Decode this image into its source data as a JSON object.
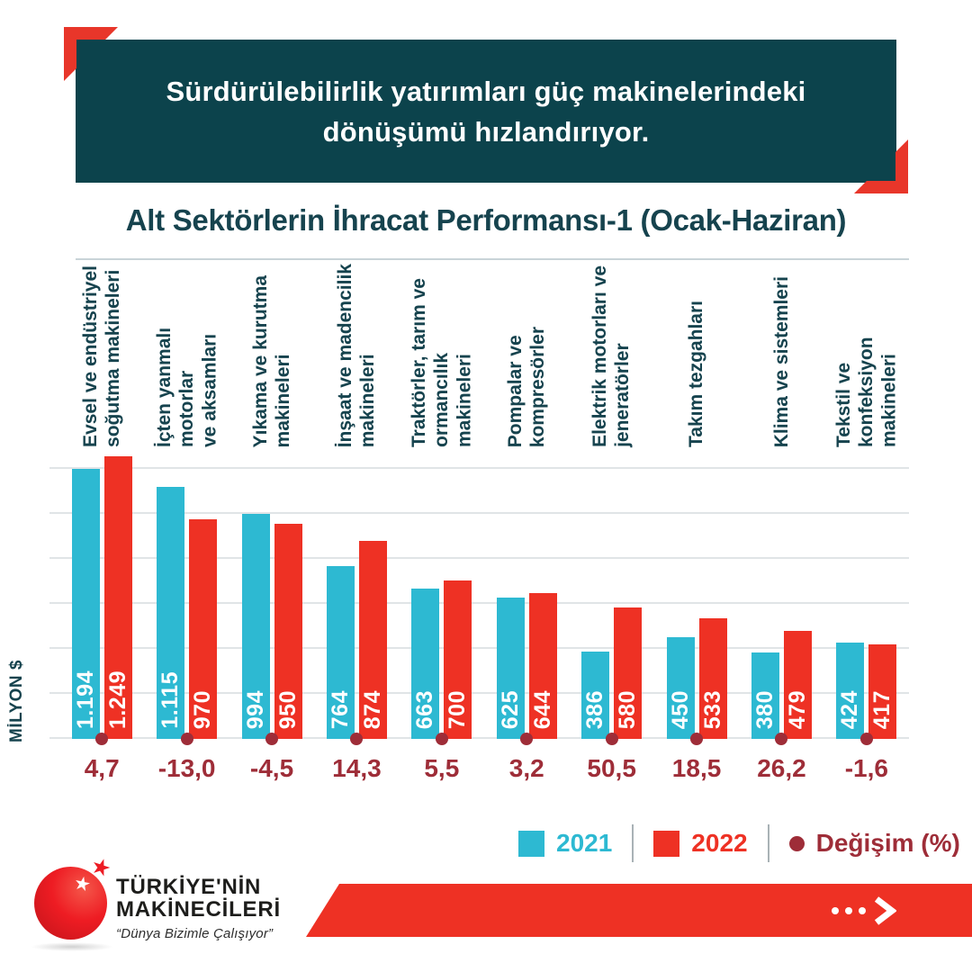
{
  "colors": {
    "banner_teal": "#0c434c",
    "accent_red": "#e8362a",
    "bar_2021_cyan": "#2db9d2",
    "bar_2022_red": "#ee3124",
    "change_dark_red": "#9e2d38",
    "title_teal": "#16434e",
    "gridline_gray": "#e0e4e7"
  },
  "header": {
    "line1": "Sürdürülebilirlik yatırımları güç makinelerindeki",
    "line2": "dönüşümü hızlandırıyor."
  },
  "chart_data": {
    "type": "bar",
    "title": "Alt Sektörlerin İhracat Performansı-1 (Ocak-Haziran)",
    "ylabel": "MİLYON $",
    "ylim": [
      0,
      1400
    ],
    "gridline_step": 200,
    "grid": true,
    "legend_position": "bottom-right",
    "categories": [
      [
        "Evsel ve endüstriyel",
        "soğutma makineleri"
      ],
      [
        "İçten yanmalı motorlar",
        "ve aksamları"
      ],
      [
        "Yıkama ve kurutma",
        "makineleri"
      ],
      [
        "İnşaat ve madencilik",
        "makineleri"
      ],
      [
        "Traktörler, tarım ve",
        "ormancılık makineleri"
      ],
      [
        "Pompalar ve",
        "kompresörler"
      ],
      [
        "Elektrik motorları ve",
        "jeneratörler"
      ],
      [
        "Takım tezgahları"
      ],
      [
        "Klima ve sistemleri"
      ],
      [
        "Tekstil ve konfeksiyon",
        "makineleri"
      ]
    ],
    "series": [
      {
        "name": "2021",
        "color": "#2db9d2",
        "values": [
          1194,
          1115,
          994,
          764,
          663,
          625,
          386,
          450,
          380,
          424
        ],
        "labels": [
          "1.194",
          "1.115",
          "994",
          "764",
          "663",
          "625",
          "386",
          "450",
          "380",
          "424"
        ]
      },
      {
        "name": "2022",
        "color": "#ee3124",
        "values": [
          1249,
          970,
          950,
          874,
          700,
          644,
          580,
          533,
          479,
          417
        ],
        "labels": [
          "1.249",
          "970",
          "950",
          "874",
          "700",
          "644",
          "580",
          "533",
          "479",
          "417"
        ]
      }
    ],
    "change": {
      "name": "Değişim (%)",
      "color": "#9e2d38",
      "values": [
        4.7,
        -13.0,
        -4.5,
        14.3,
        5.5,
        3.2,
        50.5,
        18.5,
        26.2,
        -1.6
      ],
      "labels": [
        "4,7",
        "-13,0",
        "-4,5",
        "14,3",
        "5,5",
        "3,2",
        "50,5",
        "18,5",
        "26,2",
        "-1,6"
      ]
    }
  },
  "legend": {
    "items": [
      {
        "label": "2021",
        "color": "#2db9d2",
        "swatch": "square"
      },
      {
        "label": "2022",
        "color": "#ee3124",
        "swatch": "square"
      },
      {
        "label": "Değişim (%)",
        "color": "#9e2d38",
        "swatch": "circle"
      }
    ]
  },
  "footer": {
    "logo": {
      "line1": "TÜRKİYE'NİN",
      "line2": "MAKİNECİLERİ",
      "tagline": "“Dünya Bizimle Çalışıyor”",
      "star": "★"
    },
    "banner": {
      "icon": "dots-chevron-right-icon"
    }
  }
}
